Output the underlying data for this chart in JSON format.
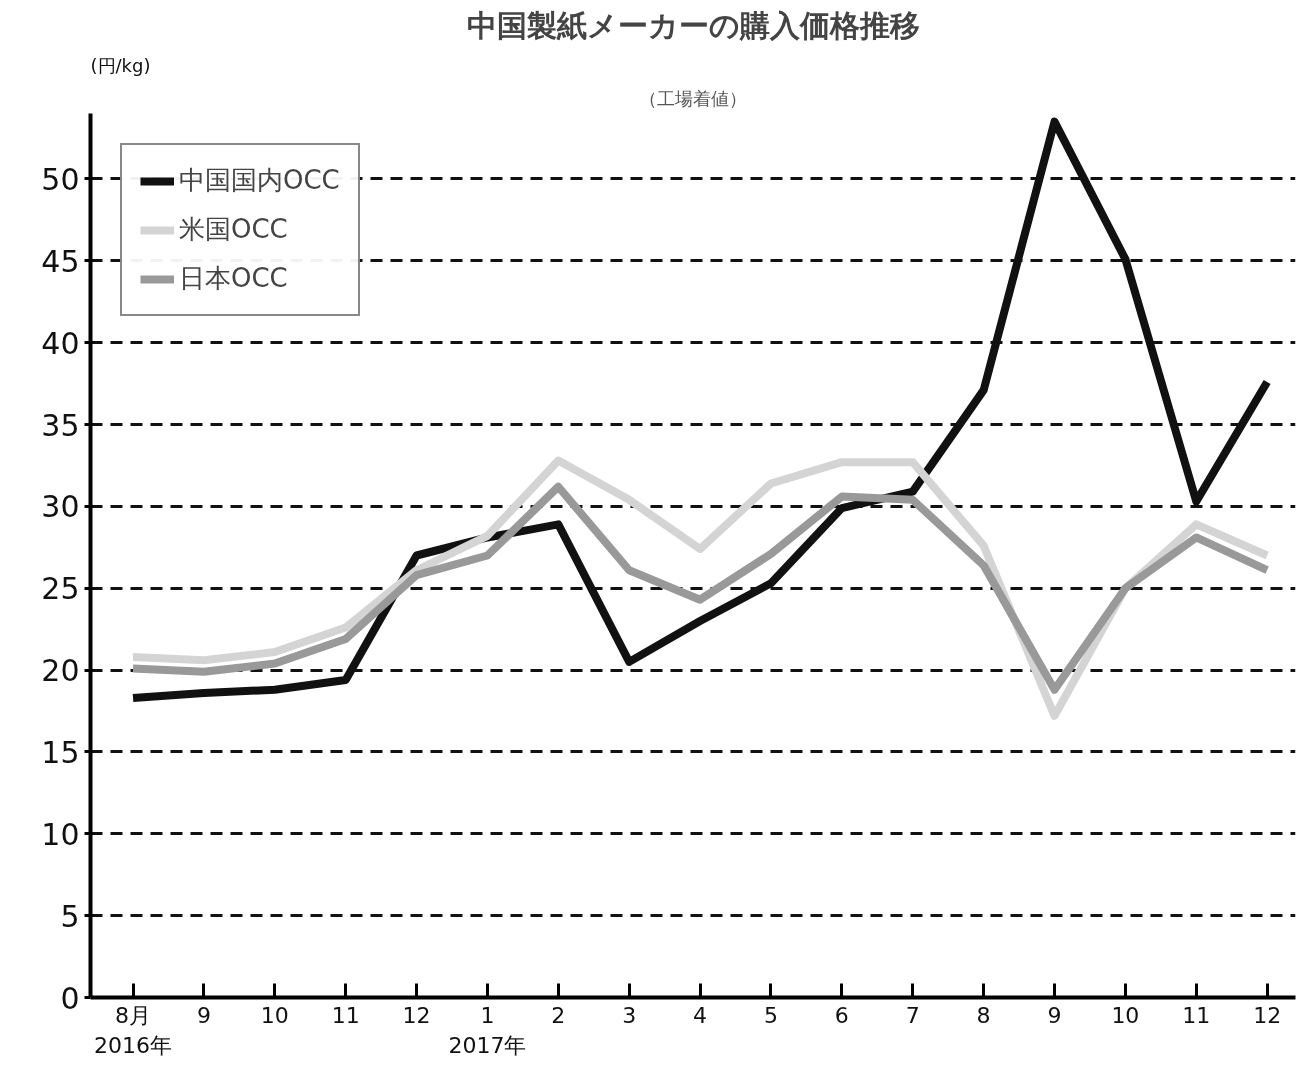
{
  "chart_data": {
    "type": "line",
    "title": "中国製紙メーカーの購入価格推移",
    "subtitle": "（工場着値）",
    "ylabel": "(円/kg)",
    "categories": [
      "8月\n2016年",
      "9",
      "10",
      "11",
      "12",
      "1\n2017年",
      "2",
      "3",
      "4",
      "5",
      "6",
      "7",
      "8",
      "9",
      "10",
      "11",
      "12"
    ],
    "series": [
      {
        "name": "中国国内OCC",
        "color": "#111111",
        "values": [
          18.3,
          18.6,
          18.8,
          19.4,
          27.0,
          28.1,
          28.9,
          20.5,
          23.0,
          25.3,
          29.9,
          30.9,
          37.1,
          53.5,
          45.1,
          30.3,
          37.6
        ]
      },
      {
        "name": "米国OCC",
        "color": "#d4d4d4",
        "values": [
          20.8,
          20.6,
          21.1,
          22.6,
          26.1,
          28.2,
          32.8,
          30.4,
          27.4,
          31.4,
          32.7,
          32.7,
          27.6,
          17.2,
          25.0,
          28.9,
          27.0
        ]
      },
      {
        "name": "日本OCC",
        "color": "#999999",
        "values": [
          20.1,
          19.9,
          20.4,
          21.9,
          25.8,
          27.0,
          31.2,
          26.1,
          24.3,
          27.1,
          30.6,
          30.4,
          26.4,
          18.8,
          25.0,
          28.1,
          26.1
        ]
      }
    ],
    "ylim": [
      0,
      54
    ],
    "yticks": [
      0,
      5,
      10,
      15,
      20,
      25,
      30,
      35,
      40,
      45,
      50
    ],
    "grid": "y",
    "legend": "top left",
    "line_style": "solid",
    "marker": "none"
  }
}
